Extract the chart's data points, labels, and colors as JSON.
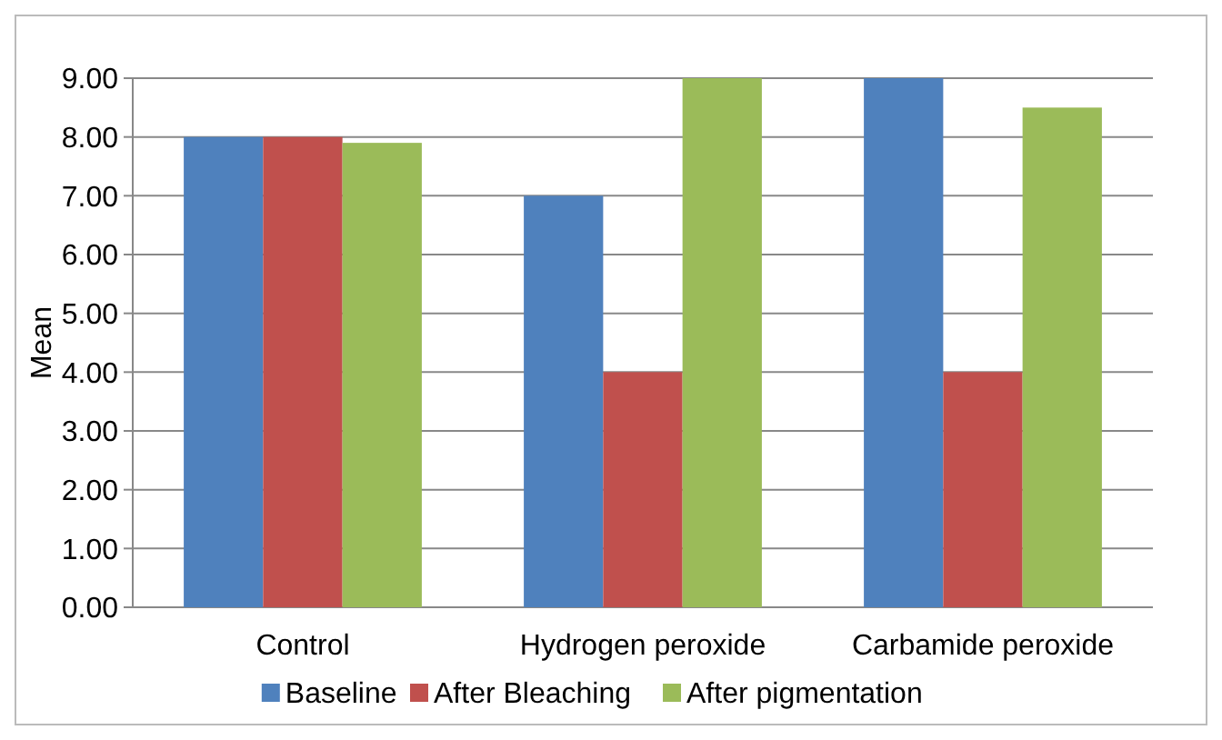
{
  "chart_data": {
    "type": "bar",
    "ylabel": "Mean",
    "categories": [
      "Control",
      "Hydrogen peroxide",
      "Carbamide peroxide"
    ],
    "series": [
      {
        "name": "Baseline",
        "color": "#4f81bd",
        "values": [
          8.0,
          7.0,
          9.0
        ]
      },
      {
        "name": "After Bleaching",
        "color": "#c0504d",
        "values": [
          8.0,
          4.0,
          4.0
        ]
      },
      {
        "name": "After pigmentation",
        "color": "#9bbb59",
        "values": [
          7.9,
          9.0,
          8.5
        ]
      }
    ],
    "ylim": [
      0,
      9
    ],
    "yticks": [
      {
        "value": 0,
        "label": "0.00"
      },
      {
        "value": 1,
        "label": "1.00"
      },
      {
        "value": 2,
        "label": "2.00"
      },
      {
        "value": 3,
        "label": "3.00"
      },
      {
        "value": 4,
        "label": "4.00"
      },
      {
        "value": 5,
        "label": "5.00"
      },
      {
        "value": 6,
        "label": "6.00"
      },
      {
        "value": 7,
        "label": "7.00"
      },
      {
        "value": 8,
        "label": "8.00"
      },
      {
        "value": 9,
        "label": "9.00"
      }
    ],
    "grid": "y",
    "legend": "bottom"
  }
}
